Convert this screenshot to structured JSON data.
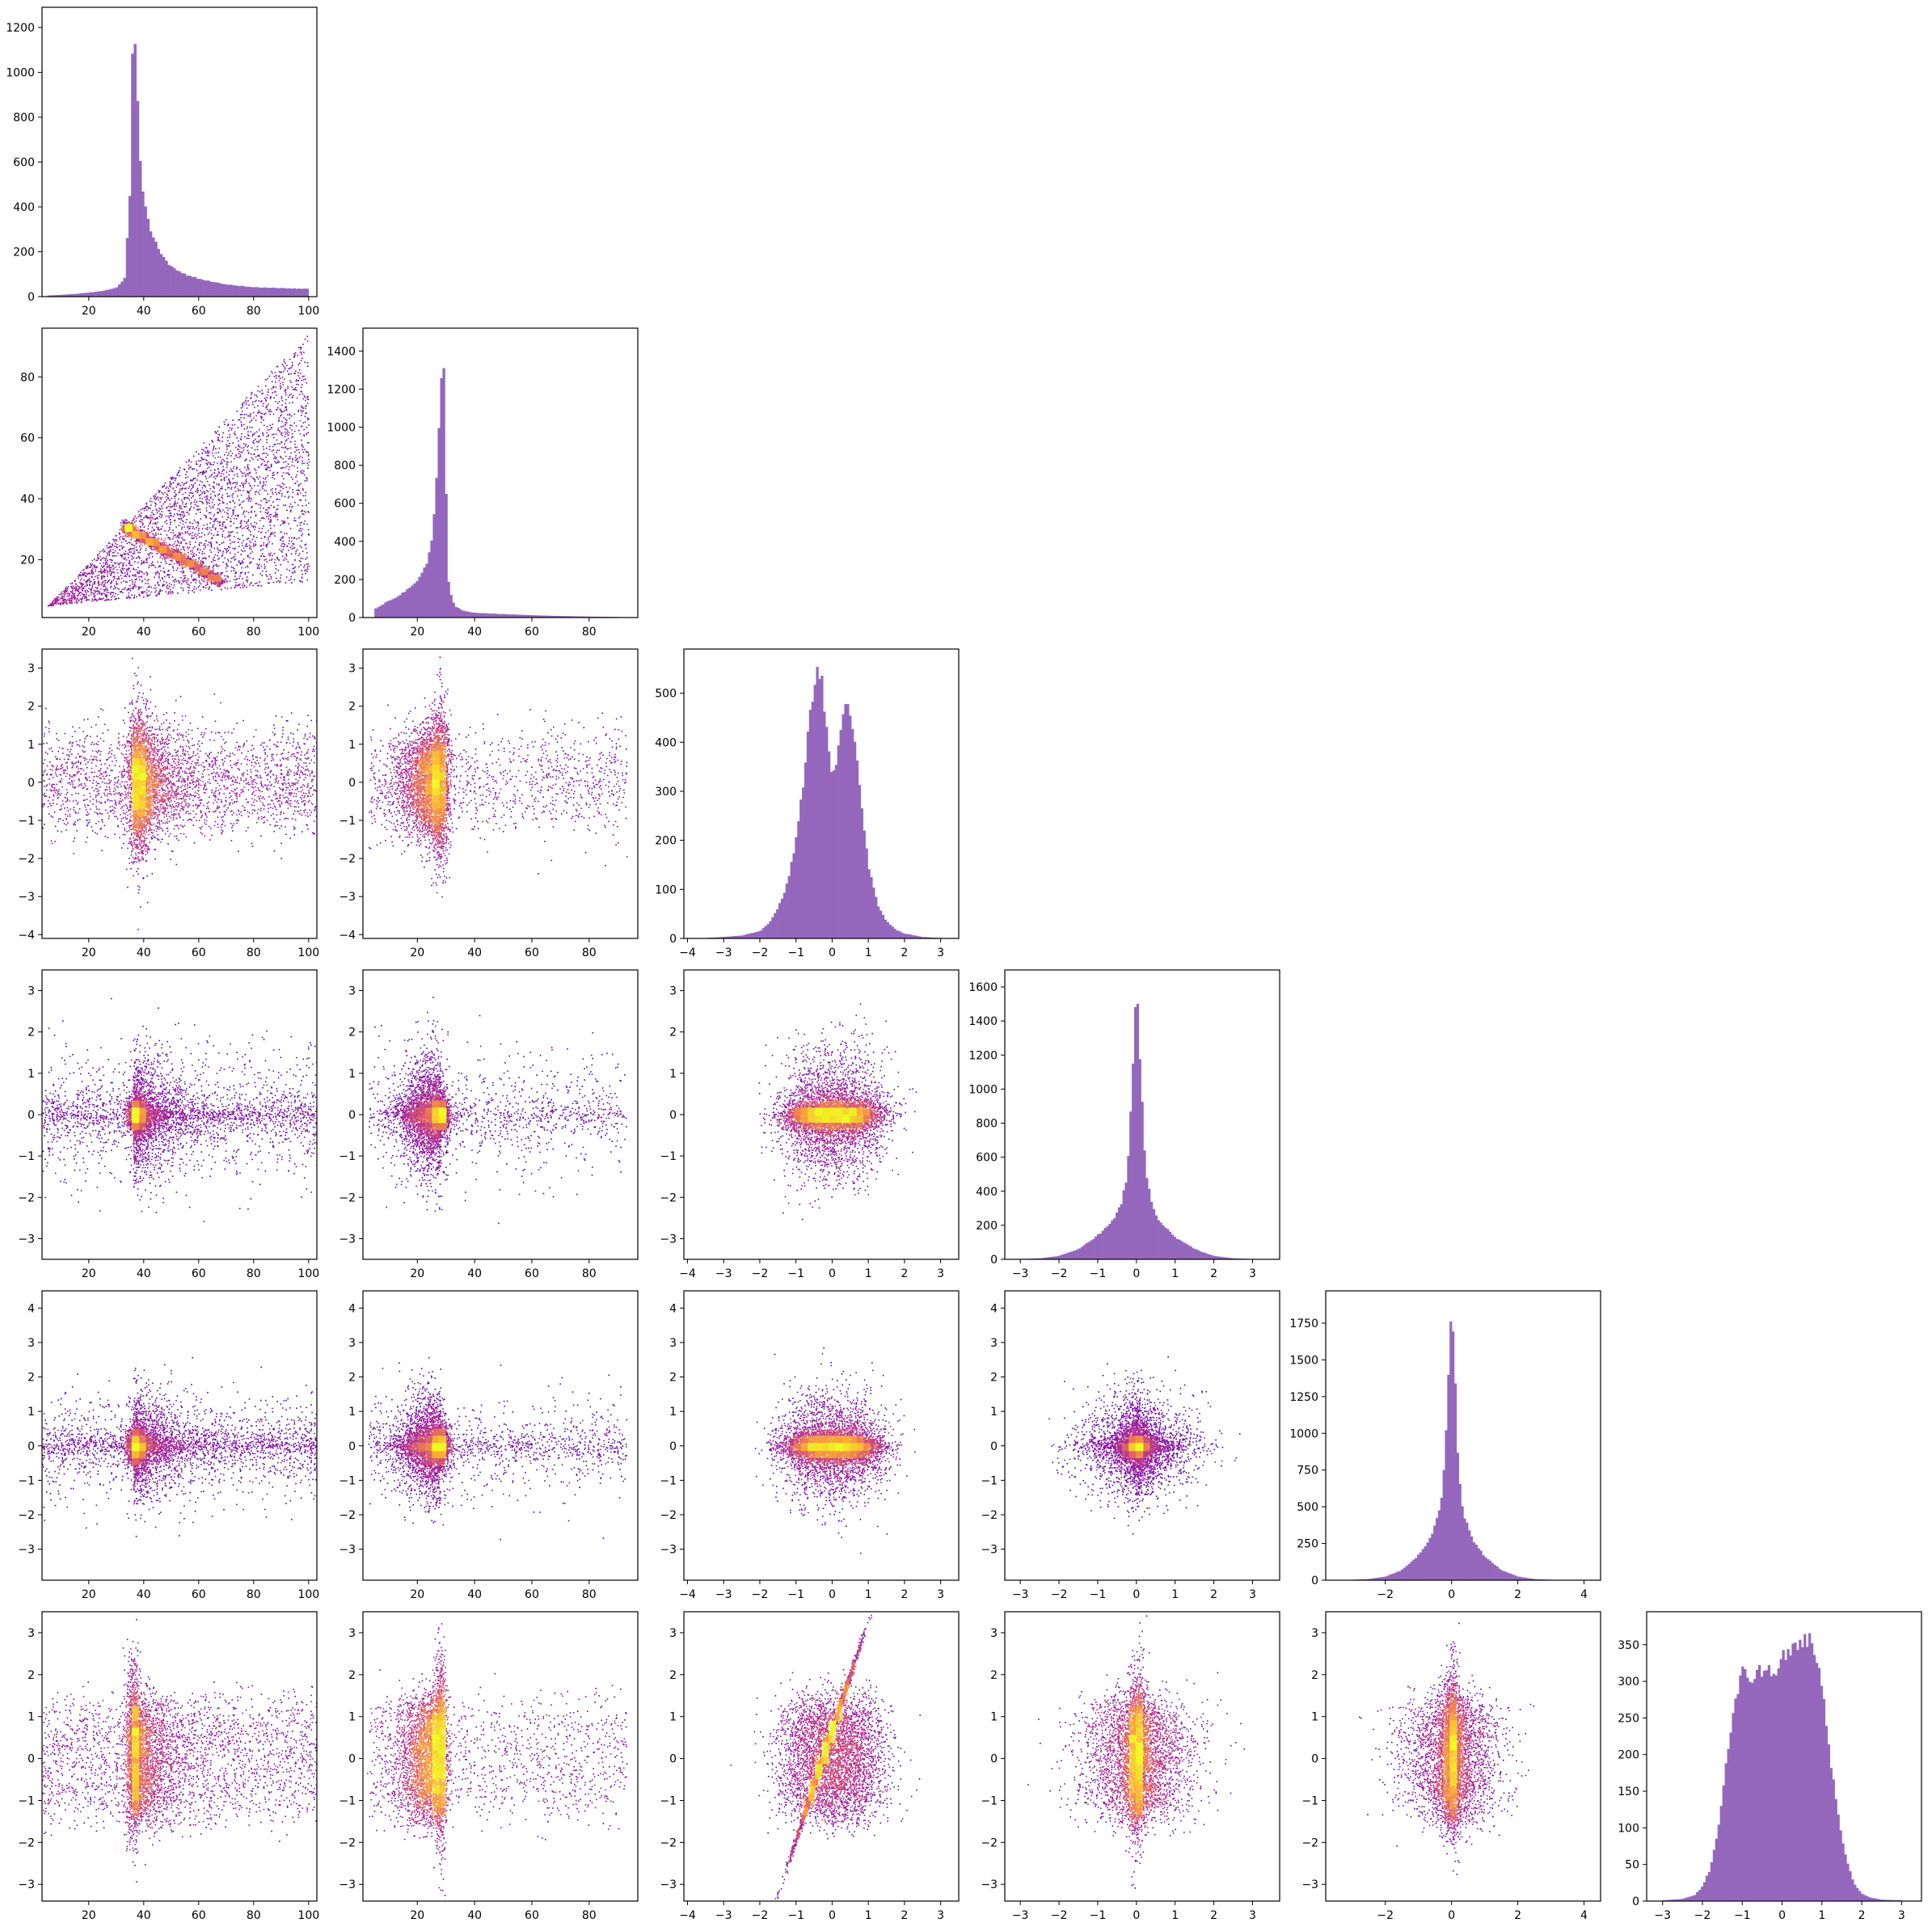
{
  "colors": {
    "hist_fill": "#9467bd",
    "scatter_colormap": [
      "#2a0593",
      "#7a0fa6",
      "#b12a90",
      "#e16462",
      "#fca636",
      "#f0f921"
    ],
    "axes_edge": "#000000",
    "background": "#ffffff"
  },
  "variables": [
    {
      "index": 0,
      "type": "skewed_peak"
    },
    {
      "index": 1,
      "type": "skewed_peak"
    },
    {
      "index": 2,
      "type": "bimodal"
    },
    {
      "index": 3,
      "type": "laplace_like"
    },
    {
      "index": 4,
      "type": "laplace_like"
    },
    {
      "index": 5,
      "type": "platykurtic"
    }
  ],
  "chart_data": {
    "type": "corner_plot",
    "grid": false,
    "layout": "lower-triangle 6x6; histograms on diagonal, density-colored scatter below",
    "diagonal_histograms": [
      {
        "var": 0,
        "type": "bar",
        "xlim": [
          3,
          103
        ],
        "ylim": [
          0,
          1290
        ],
        "xticks": [
          "20",
          "40",
          "60",
          "80",
          "100"
        ],
        "yticks": [
          "0",
          "200",
          "400",
          "600",
          "800",
          "1000",
          "1200"
        ],
        "bin_centers": [
          5,
          10,
          15,
          20,
          25,
          30,
          33,
          35,
          36,
          37,
          38,
          39,
          40,
          42,
          44,
          46,
          48,
          50,
          55,
          60,
          65,
          70,
          75,
          80,
          85,
          90,
          95,
          100
        ],
        "counts": [
          5,
          8,
          12,
          18,
          25,
          40,
          80,
          450,
          1210,
          1110,
          780,
          560,
          420,
          320,
          250,
          200,
          160,
          135,
          100,
          80,
          65,
          55,
          48,
          42,
          40,
          38,
          36,
          35
        ]
      },
      {
        "var": 1,
        "type": "bar",
        "xlim": [
          1,
          97
        ],
        "ylim": [
          0,
          1520
        ],
        "xticks": [
          "20",
          "40",
          "60",
          "80"
        ],
        "yticks": [
          "0",
          "200",
          "400",
          "600",
          "800",
          "1000",
          "1200",
          "1400"
        ],
        "bin_centers": [
          5,
          8,
          11,
          14,
          17,
          20,
          22,
          24,
          25,
          26,
          27,
          28,
          29,
          30,
          31,
          33,
          36,
          40,
          50,
          60,
          70,
          80,
          90
        ],
        "counts": [
          45,
          70,
          95,
          120,
          150,
          190,
          240,
          320,
          420,
          560,
          800,
          1170,
          1440,
          700,
          150,
          60,
          35,
          25,
          18,
          12,
          8,
          5,
          3
        ]
      },
      {
        "var": 2,
        "type": "bar",
        "xlim": [
          -4.1,
          3.5
        ],
        "ylim": [
          0,
          590
        ],
        "xticks": [
          "−4",
          "−3",
          "−2",
          "−1",
          "0",
          "1",
          "2",
          "3"
        ],
        "yticks": [
          "0",
          "100",
          "200",
          "300",
          "400",
          "500"
        ],
        "bin_centers": [
          -3.5,
          -3.0,
          -2.5,
          -2.0,
          -1.75,
          -1.5,
          -1.25,
          -1.0,
          -0.8,
          -0.6,
          -0.45,
          -0.3,
          -0.15,
          0.0,
          0.15,
          0.3,
          0.45,
          0.6,
          0.8,
          1.0,
          1.25,
          1.5,
          1.75,
          2.0,
          2.5,
          3.0
        ],
        "counts": [
          1,
          3,
          6,
          15,
          30,
          60,
          110,
          200,
          320,
          460,
          545,
          540,
          420,
          330,
          380,
          460,
          480,
          420,
          280,
          150,
          70,
          35,
          18,
          10,
          3,
          1
        ]
      },
      {
        "var": 3,
        "type": "bar",
        "xlim": [
          -3.4,
          3.7
        ],
        "ylim": [
          0,
          1700
        ],
        "xticks": [
          "−3",
          "−2",
          "−1",
          "0",
          "1",
          "2",
          "3"
        ],
        "yticks": [
          "0",
          "200",
          "400",
          "600",
          "800",
          "1000",
          "1200",
          "1400",
          "1600"
        ],
        "bin_centers": [
          -3.0,
          -2.5,
          -2.0,
          -1.5,
          -1.0,
          -0.6,
          -0.4,
          -0.25,
          -0.15,
          -0.05,
          0.0,
          0.05,
          0.15,
          0.25,
          0.4,
          0.6,
          1.0,
          1.5,
          2.0,
          2.5,
          3.0
        ],
        "counts": [
          2,
          6,
          20,
          60,
          140,
          230,
          320,
          480,
          850,
          1350,
          1620,
          1400,
          900,
          500,
          320,
          220,
          130,
          60,
          20,
          6,
          2
        ]
      },
      {
        "var": 4,
        "type": "bar",
        "xlim": [
          -3.8,
          4.5
        ],
        "ylim": [
          0,
          1970
        ],
        "xticks": [
          "−2",
          "0",
          "2",
          "4"
        ],
        "yticks": [
          "0",
          "250",
          "500",
          "750",
          "1000",
          "1250",
          "1500",
          "1750"
        ],
        "bin_centers": [
          -3.0,
          -2.5,
          -2.0,
          -1.5,
          -1.0,
          -0.6,
          -0.35,
          -0.2,
          -0.1,
          0.0,
          0.1,
          0.2,
          0.35,
          0.6,
          1.0,
          1.5,
          2.0,
          2.5,
          3.0,
          4.0
        ],
        "counts": [
          3,
          8,
          25,
          70,
          170,
          300,
          480,
          800,
          1400,
          1880,
          1450,
          800,
          460,
          290,
          160,
          70,
          25,
          8,
          3,
          1
        ]
      },
      {
        "var": 5,
        "type": "bar",
        "xlim": [
          -3.4,
          3.5
        ],
        "ylim": [
          0,
          395
        ],
        "xticks": [
          "−3",
          "−2",
          "−1",
          "0",
          "1",
          "2",
          "3"
        ],
        "yticks": [
          "0",
          "50",
          "100",
          "150",
          "200",
          "250",
          "300",
          "350"
        ],
        "bin_centers": [
          -3.0,
          -2.5,
          -2.2,
          -2.0,
          -1.8,
          -1.6,
          -1.4,
          -1.2,
          -1.0,
          -0.8,
          -0.6,
          -0.4,
          -0.2,
          0.0,
          0.2,
          0.4,
          0.6,
          0.8,
          1.0,
          1.2,
          1.4,
          1.6,
          1.8,
          2.0,
          2.2,
          2.5,
          3.0
        ],
        "counts": [
          1,
          3,
          8,
          20,
          45,
          100,
          190,
          270,
          320,
          300,
          310,
          320,
          310,
          330,
          340,
          350,
          360,
          350,
          300,
          200,
          120,
          60,
          25,
          10,
          5,
          2,
          1
        ]
      }
    ],
    "scatter_panels": [
      {
        "row": 1,
        "col": 0,
        "type": "scatter",
        "xlim": [
          3,
          103
        ],
        "ylim": [
          1,
          96
        ],
        "xticks": [
          "20",
          "40",
          "60",
          "80",
          "100"
        ],
        "yticks": [
          "20",
          "40",
          "60",
          "80"
        ],
        "shape": "wedge",
        "wedge_vertex": [
          5,
          5
        ],
        "wedge_upper_end": [
          100,
          95
        ],
        "wedge_lower_end": [
          100,
          13
        ],
        "core_line": {
          "from": [
            33,
            31
          ],
          "to": [
            68,
            13
          ],
          "width": 2.2
        }
      },
      {
        "row": 2,
        "col": 0,
        "type": "scatter",
        "xlim": [
          3,
          103
        ],
        "ylim": [
          -4.1,
          3.5
        ],
        "xticks": [
          "20",
          "40",
          "60",
          "80",
          "100"
        ],
        "yticks": [
          "−4",
          "−3",
          "−2",
          "−1",
          "0",
          "1",
          "2",
          "3"
        ],
        "x_dist": "var0",
        "y_dist": "var2",
        "cores": [
          {
            "cx": 38,
            "cy": 0,
            "sx": 2.2,
            "sy": 1.0
          }
        ]
      },
      {
        "row": 2,
        "col": 1,
        "type": "scatter",
        "xlim": [
          1,
          97
        ],
        "ylim": [
          -4.1,
          3.5
        ],
        "xticks": [
          "20",
          "40",
          "60",
          "80"
        ],
        "yticks": [
          "−4",
          "−3",
          "−2",
          "−1",
          "0",
          "1",
          "2",
          "3"
        ],
        "x_dist": "var1",
        "y_dist": "var2",
        "cores": [
          {
            "cx": 28,
            "cy": 0,
            "sx": 1.6,
            "sy": 1.0
          }
        ]
      },
      {
        "row": 3,
        "col": 0,
        "type": "scatter",
        "xlim": [
          3,
          103
        ],
        "ylim": [
          -3.5,
          3.5
        ],
        "xticks": [
          "20",
          "40",
          "60",
          "80",
          "100"
        ],
        "yticks": [
          "−3",
          "−2",
          "−1",
          "0",
          "1",
          "2",
          "3"
        ],
        "x_dist": "var0",
        "y_dist": "var3",
        "cores": [
          {
            "cx": 37,
            "cy": 0,
            "sx": 1.5,
            "sy": 0.18
          }
        ]
      },
      {
        "row": 3,
        "col": 1,
        "type": "scatter",
        "xlim": [
          1,
          97
        ],
        "ylim": [
          -3.5,
          3.5
        ],
        "xticks": [
          "20",
          "40",
          "60",
          "80"
        ],
        "yticks": [
          "−3",
          "−2",
          "−1",
          "0",
          "1",
          "2",
          "3"
        ],
        "x_dist": "var1",
        "y_dist": "var3",
        "cores": [
          {
            "cx": 28,
            "cy": 0,
            "sx": 1.4,
            "sy": 0.18
          }
        ]
      },
      {
        "row": 3,
        "col": 2,
        "type": "scatter",
        "xlim": [
          -4.1,
          3.5
        ],
        "ylim": [
          -3.5,
          3.5
        ],
        "xticks": [
          "−4",
          "−3",
          "−2",
          "−1",
          "0",
          "1",
          "2",
          "3"
        ],
        "yticks": [
          "−3",
          "−2",
          "−1",
          "0",
          "1",
          "2",
          "3"
        ],
        "x_dist": "var2",
        "y_dist": "var3",
        "cores": [
          {
            "cx": -0.45,
            "cy": 0,
            "sx": 0.4,
            "sy": 0.15
          },
          {
            "cx": 0.45,
            "cy": 0,
            "sx": 0.4,
            "sy": 0.15
          }
        ]
      },
      {
        "row": 4,
        "col": 0,
        "type": "scatter",
        "xlim": [
          3,
          103
        ],
        "ylim": [
          -3.9,
          4.5
        ],
        "xticks": [
          "20",
          "40",
          "60",
          "80",
          "100"
        ],
        "yticks": [
          "−3",
          "−2",
          "−1",
          "0",
          "1",
          "2",
          "3",
          "4"
        ],
        "x_dist": "var0",
        "y_dist": "var4",
        "cores": [
          {
            "cx": 37,
            "cy": 0,
            "sx": 1.8,
            "sy": 0.25
          }
        ]
      },
      {
        "row": 4,
        "col": 1,
        "type": "scatter",
        "xlim": [
          1,
          97
        ],
        "ylim": [
          -3.9,
          4.5
        ],
        "xticks": [
          "20",
          "40",
          "60",
          "80"
        ],
        "yticks": [
          "−3",
          "−2",
          "−1",
          "0",
          "1",
          "2",
          "3",
          "4"
        ],
        "x_dist": "var1",
        "y_dist": "var4",
        "cores": [
          {
            "cx": 28,
            "cy": 0,
            "sx": 1.4,
            "sy": 0.25
          }
        ]
      },
      {
        "row": 4,
        "col": 2,
        "type": "scatter",
        "xlim": [
          -4.1,
          3.5
        ],
        "ylim": [
          -3.9,
          4.5
        ],
        "xticks": [
          "−4",
          "−3",
          "−2",
          "−1",
          "0",
          "1",
          "2",
          "3"
        ],
        "yticks": [
          "−3",
          "−2",
          "−1",
          "0",
          "1",
          "2",
          "3",
          "4"
        ],
        "x_dist": "var2",
        "y_dist": "var4",
        "cores": [
          {
            "cx": -0.45,
            "cy": 0,
            "sx": 0.4,
            "sy": 0.18
          },
          {
            "cx": 0.45,
            "cy": 0,
            "sx": 0.4,
            "sy": 0.18
          }
        ]
      },
      {
        "row": 4,
        "col": 3,
        "type": "scatter",
        "xlim": [
          -3.4,
          3.7
        ],
        "ylim": [
          -3.9,
          4.5
        ],
        "xticks": [
          "−3",
          "−2",
          "−1",
          "0",
          "1",
          "2",
          "3"
        ],
        "yticks": [
          "−3",
          "−2",
          "−1",
          "0",
          "1",
          "2",
          "3",
          "4"
        ],
        "x_dist": "var3",
        "y_dist": "var4",
        "cores": [
          {
            "cx": 0,
            "cy": 0,
            "sx": 0.15,
            "sy": 0.15
          }
        ]
      },
      {
        "row": 5,
        "col": 0,
        "type": "scatter",
        "xlim": [
          3,
          103
        ],
        "ylim": [
          -3.4,
          3.5
        ],
        "xticks": [
          "20",
          "40",
          "60",
          "80",
          "100"
        ],
        "yticks": [
          "−3",
          "−2",
          "−1",
          "0",
          "1",
          "2",
          "3"
        ],
        "x_dist": "var0",
        "y_dist": "var5",
        "cores": [
          {
            "cx": 36,
            "cy": 0.2,
            "sx": 1.3,
            "sy": 1.0
          }
        ]
      },
      {
        "row": 5,
        "col": 1,
        "type": "scatter",
        "xlim": [
          1,
          97
        ],
        "ylim": [
          -3.4,
          3.5
        ],
        "xticks": [
          "20",
          "40",
          "60",
          "80"
        ],
        "yticks": [
          "−3",
          "−2",
          "−1",
          "0",
          "1",
          "2",
          "3"
        ],
        "x_dist": "var1",
        "y_dist": "var5",
        "cores": [
          {
            "cx": 28,
            "cy": 0.2,
            "sx": 1.1,
            "sy": 1.0
          }
        ]
      },
      {
        "row": 5,
        "col": 2,
        "type": "scatter",
        "xlim": [
          -4.1,
          3.5
        ],
        "ylim": [
          -3.4,
          3.5
        ],
        "xticks": [
          "−4",
          "−3",
          "−2",
          "−1",
          "0",
          "1",
          "2",
          "3"
        ],
        "yticks": [
          "−3",
          "−2",
          "−1",
          "0",
          "1",
          "2",
          "3"
        ],
        "x_dist": "var2",
        "y_dist": "var5",
        "rotated_cores": [
          {
            "cx": -0.2,
            "cy": 0.2,
            "s_long": 1.0,
            "s_short": 0.12,
            "angle_deg": -62
          }
        ]
      },
      {
        "row": 5,
        "col": 3,
        "type": "scatter",
        "xlim": [
          -3.4,
          3.7
        ],
        "ylim": [
          -3.4,
          3.5
        ],
        "xticks": [
          "−3",
          "−2",
          "−1",
          "0",
          "1",
          "2",
          "3"
        ],
        "yticks": [
          "−3",
          "−2",
          "−1",
          "0",
          "1",
          "2",
          "3"
        ],
        "x_dist": "var3",
        "y_dist": "var5",
        "cores": [
          {
            "cx": 0,
            "cy": 0.2,
            "sx": 0.12,
            "sy": 1.0
          }
        ]
      },
      {
        "row": 5,
        "col": 4,
        "type": "scatter",
        "xlim": [
          -3.8,
          4.5
        ],
        "ylim": [
          -3.4,
          3.5
        ],
        "xticks": [
          "−2",
          "0",
          "2",
          "4"
        ],
        "yticks": [
          "−3",
          "−2",
          "−1",
          "0",
          "1",
          "2",
          "3"
        ],
        "x_dist": "var4",
        "y_dist": "var5",
        "cores": [
          {
            "cx": 0,
            "cy": 0.2,
            "sx": 0.12,
            "sy": 1.0
          }
        ]
      }
    ]
  }
}
